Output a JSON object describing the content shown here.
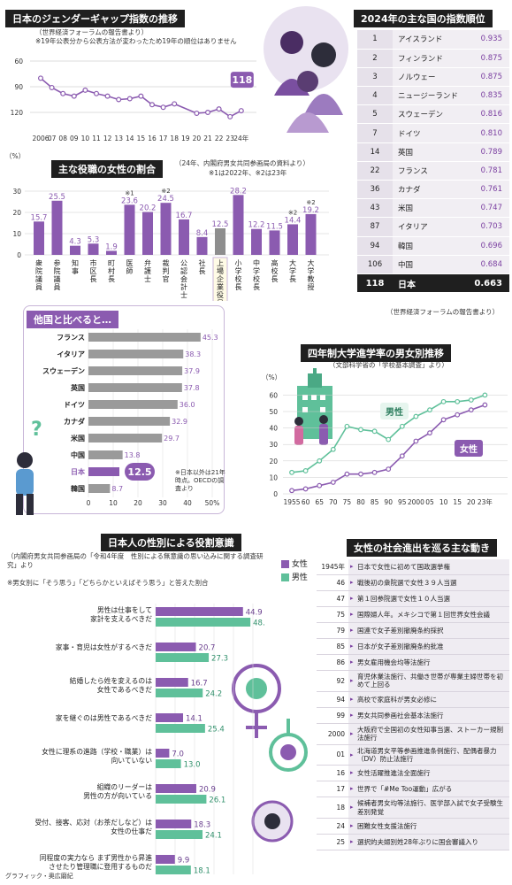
{
  "gap_index": {
    "title": "日本のジェンダーギャップ指数の推移",
    "source": "（世界経済フォーラムの報告書より）",
    "note": "※19年公表分から公表方法が変わったため19年の順位はありません",
    "highlight": "118"
  },
  "ranking": {
    "title": "2024年の主な国の指数順位",
    "source": "（世界経済フォーラムの報告書より）",
    "rows": [
      {
        "rank": "1",
        "country": "アイスランド",
        "value": "0.935"
      },
      {
        "rank": "2",
        "country": "フィンランド",
        "value": "0.875"
      },
      {
        "rank": "3",
        "country": "ノルウェー",
        "value": "0.875"
      },
      {
        "rank": "4",
        "country": "ニュージーランド",
        "value": "0.835"
      },
      {
        "rank": "5",
        "country": "スウェーデン",
        "value": "0.816"
      },
      {
        "rank": "7",
        "country": "ドイツ",
        "value": "0.810"
      },
      {
        "rank": "14",
        "country": "英国",
        "value": "0.789"
      },
      {
        "rank": "22",
        "country": "フランス",
        "value": "0.781"
      },
      {
        "rank": "36",
        "country": "カナダ",
        "value": "0.761"
      },
      {
        "rank": "43",
        "country": "米国",
        "value": "0.747"
      },
      {
        "rank": "87",
        "country": "イタリア",
        "value": "0.703"
      },
      {
        "rank": "94",
        "country": "韓国",
        "value": "0.696"
      },
      {
        "rank": "106",
        "country": "中国",
        "value": "0.684"
      },
      {
        "rank": "118",
        "country": "日本",
        "value": "0.663"
      }
    ]
  },
  "roles": {
    "title": "主な役職の女性の割合",
    "source": "（24年、内閣府男女共同参画局の資料より）",
    "note": "※1は2022年、※2は23年",
    "unit": "（%）"
  },
  "compare": {
    "title": "他国と比べると…",
    "note": "※日本以外は21年時点。OECDの調査より"
  },
  "university": {
    "title": "四年制大学進学率の男女別推移",
    "source": "（文部科学省の「学校基本調査」より）",
    "unit": "（%）",
    "male_label": "男性",
    "female_label": "女性"
  },
  "awareness": {
    "title": "日本人の性別による役割意識",
    "source": "（内閣府男女共同参画局の「令和4年度　性別による無意識の思い込みに関する調査研究」より",
    "note": "※男女別に「そう思う」「どちらかといえばそう思う」と答えた割合",
    "legend_f": "女性",
    "legend_m": "男性"
  },
  "history": {
    "title": "女性の社会進出を巡る主な動き",
    "rows": [
      {
        "year": "1945年",
        "event": "日本で女性に初めて国政選挙権"
      },
      {
        "year": "46",
        "event": "戦後初の衆院選で女性３９人当選"
      },
      {
        "year": "47",
        "event": "第１回参院選で女性１０人当選"
      },
      {
        "year": "75",
        "event": "国際婦人年。メキシコで第１回世界女性会議"
      },
      {
        "year": "79",
        "event": "国連で女子差別撤廃条約採択"
      },
      {
        "year": "85",
        "event": "日本が女子差別撤廃条約批准"
      },
      {
        "year": "86",
        "event": "男女雇用機会均等法施行"
      },
      {
        "year": "92",
        "event": "育児休業法施行、共働き世帯が専業主婦世帯を初めて上回る"
      },
      {
        "year": "94",
        "event": "高校で家庭科が男女必修に"
      },
      {
        "year": "99",
        "event": "男女共同参画社会基本法施行"
      },
      {
        "year": "2000",
        "event": "大阪府で全国初の女性知事当選、ストーカー規制法施行"
      },
      {
        "year": "01",
        "event": "北海道男女平等参画推進条例施行、配偶者暴力（DV）防止法施行"
      },
      {
        "year": "16",
        "event": "女性活躍推進法全面施行"
      },
      {
        "year": "17",
        "event": "世界で「#Me Too運動」広がる"
      },
      {
        "year": "18",
        "event": "候補者男女均等法施行、医学部入試で女子受験生差別発覚"
      },
      {
        "year": "24",
        "event": "困難女性支援法施行"
      },
      {
        "year": "25",
        "event": "選択的夫婦別姓28年ぶりに国会審議入り"
      }
    ]
  },
  "credit": "グラフィック・奥広磨紀",
  "colors": {
    "purple": "#8b5bb0",
    "green": "#5fc09a",
    "gray": "#9a9a9a",
    "dark": "#1f1f1f"
  },
  "chart_data": [
    {
      "type": "line",
      "title": "日本のジェンダーギャップ指数の推移",
      "x": [
        "2006",
        "07",
        "08",
        "09",
        "10",
        "11",
        "12",
        "13",
        "14",
        "15",
        "16",
        "17",
        "18",
        "20",
        "21",
        "22",
        "23",
        "24"
      ],
      "series": [
        {
          "values": [
            80,
            91,
            98,
            101,
            94,
            98,
            101,
            105,
            104,
            101,
            111,
            114,
            110,
            121,
            120,
            116,
            125,
            118
          ]
        }
      ],
      "ylim": [
        130,
        60
      ],
      "yticks": [
        60,
        90,
        120
      ],
      "xticks": [
        "2006",
        "07",
        "08",
        "09",
        "10",
        "11",
        "12",
        "13",
        "14",
        "15",
        "16",
        "17",
        "18",
        "19",
        "20",
        "21",
        "22",
        "23",
        "24年"
      ]
    },
    {
      "type": "bar",
      "title": "主な役職の女性の割合",
      "categories": [
        "衆院議員",
        "参院議員",
        "知事",
        "市区長",
        "町村長",
        "医師",
        "弁護士",
        "裁判官",
        "公認会計士",
        "社長",
        "上場企業役員",
        "小学校長",
        "中学校長",
        "高校長",
        "大学長",
        "大学教授"
      ],
      "marks": [
        "",
        "",
        "",
        "",
        "",
        "※1",
        "",
        "※2",
        "",
        "",
        "",
        "",
        "",
        "",
        "※2",
        "※2"
      ],
      "values": [
        15.7,
        25.5,
        4.3,
        5.3,
        1.9,
        23.6,
        20.2,
        24.5,
        16.7,
        8.4,
        12.5,
        28.2,
        12.2,
        11.5,
        14.4,
        19.2
      ],
      "ylim": [
        0,
        30
      ],
      "ylabel": "（%）"
    },
    {
      "type": "bar",
      "title": "他国と比べると…",
      "categories": [
        "フランス",
        "イタリア",
        "スウェーデン",
        "英国",
        "ドイツ",
        "カナダ",
        "米国",
        "中国",
        "日本",
        "韓国"
      ],
      "values": [
        45.3,
        38.3,
        37.9,
        37.8,
        36.0,
        32.9,
        29.7,
        13.8,
        12.5,
        8.7
      ],
      "xlim": [
        0,
        50
      ],
      "xticks": [
        "0",
        "10",
        "20",
        "30",
        "40",
        "50%"
      ]
    },
    {
      "type": "line",
      "title": "四年制大学進学率の男女別推移",
      "x": [
        "1955",
        "60",
        "65",
        "70",
        "75",
        "80",
        "85",
        "90",
        "95",
        "2000",
        "05",
        "10",
        "15",
        "20",
        "23"
      ],
      "series": [
        {
          "name": "男性",
          "values": [
            13,
            14,
            20,
            27,
            41,
            39,
            38,
            33,
            41,
            47,
            51,
            56,
            56,
            57,
            60
          ]
        },
        {
          "name": "女性",
          "values": [
            2,
            3,
            5,
            7,
            12,
            12,
            13,
            15,
            23,
            32,
            37,
            45,
            48,
            51,
            54
          ]
        }
      ],
      "ylim": [
        0,
        70
      ],
      "yticks": [
        0,
        10,
        20,
        30,
        40,
        50,
        60
      ],
      "ylabel": "（%）",
      "xticks": [
        "1955",
        "60",
        "65",
        "70",
        "75",
        "80",
        "85",
        "90",
        "95",
        "2000",
        "05",
        "10",
        "15",
        "20",
        "23年"
      ]
    },
    {
      "type": "bar",
      "title": "日本人の性別による役割意識",
      "categories": [
        "男性は仕事をして家計を支えるべきだ",
        "家事・育児は女性がするべきだ",
        "結婚したら姓を変えるのは女性であるべきだ",
        "家を継ぐのは男性であるべきだ",
        "女性に理系の進路（学校・職業）は向いていない",
        "組織のリーダーは男性の方が向いている",
        "受付、接客、応対（お茶だしなど）は女性の仕事だ",
        "同程度の実力なら まず男性から昇進させたり管理職に登用するものだ"
      ],
      "series": [
        {
          "name": "女性",
          "values": [
            44.9,
            20.7,
            16.7,
            14.1,
            7.0,
            20.9,
            18.3,
            9.9
          ]
        },
        {
          "name": "男性",
          "values": [
            48.7,
            27.3,
            24.2,
            25.4,
            13.0,
            26.1,
            24.1,
            18.1
          ]
        }
      ],
      "xlim": [
        0,
        50
      ],
      "xticks": [
        "0",
        "10",
        "20",
        "30",
        "40",
        "50%"
      ]
    }
  ]
}
